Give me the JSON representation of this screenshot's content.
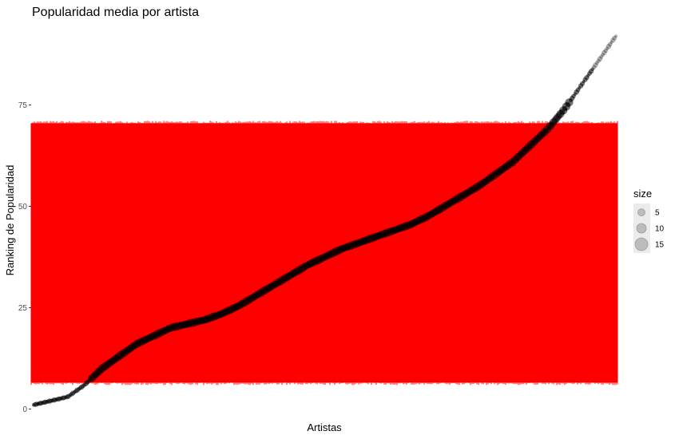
{
  "chart_data": {
    "type": "scatter",
    "title": "Popularidad media por artista",
    "xlabel": "Artistas",
    "ylabel": "Ranking de Popularidad",
    "ylim": [
      -1.5,
      95
    ],
    "y_ticks": [
      0,
      25,
      50,
      75
    ],
    "grid": false,
    "point_color": "#000000",
    "band_color": "#ff0000",
    "band": {
      "low": 6.5,
      "high": 70.5
    },
    "legend": {
      "title": "size",
      "position": "right",
      "entries": [
        {
          "label": "5",
          "size": 5
        },
        {
          "label": "10",
          "size": 10
        },
        {
          "label": "15",
          "size": 15
        }
      ]
    },
    "series": [
      {
        "curve_y": [
          1,
          2,
          3,
          6,
          10,
          13,
          16,
          18,
          20,
          21,
          22,
          23.5,
          25.5,
          28,
          30.5,
          33,
          35.5,
          37.5,
          39.5,
          41,
          42.5,
          44,
          45.5,
          47.5,
          50,
          52.5,
          55,
          58,
          61,
          65,
          69,
          74,
          80,
          86,
          92
        ]
      }
    ]
  }
}
